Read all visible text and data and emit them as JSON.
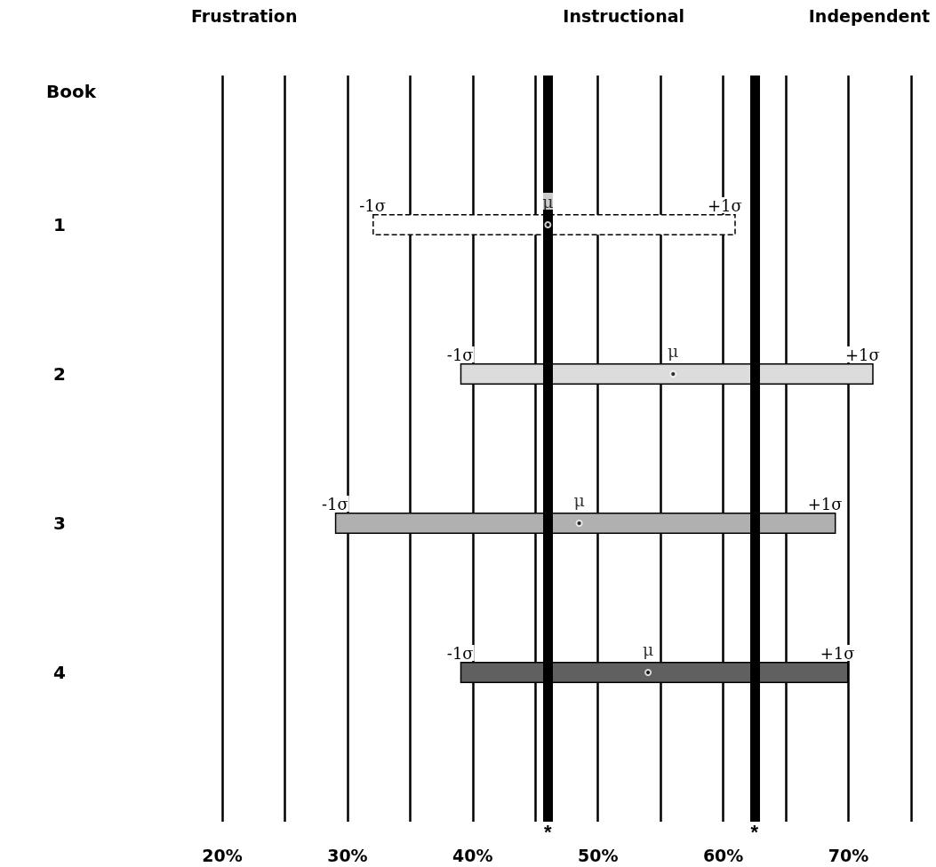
{
  "chart_data": {
    "type": "bar",
    "orientation": "horizontal",
    "ylabel": "Book",
    "categories": [
      "1",
      "2",
      "3",
      "4"
    ],
    "base": [
      32,
      39,
      29,
      39
    ],
    "values": [
      29,
      33,
      40,
      31
    ],
    "colors": [
      "#ffffff",
      "#dcdcdc",
      "#b0b0b0",
      "#606060"
    ],
    "series": [
      {
        "type": "scatter",
        "values": [
          46,
          56,
          48.5,
          54
        ],
        "marker": "circle",
        "color": "#000000",
        "value_labels": [
          "μ",
          "μ",
          "μ",
          "μ"
        ]
      }
    ],
    "xlim": [
      20,
      75
    ],
    "xticks": [
      {
        "value": 20,
        "label": "20%"
      },
      {
        "value": 25,
        "label": null
      },
      {
        "value": 30,
        "label": "30%"
      },
      {
        "value": 35,
        "label": null
      },
      {
        "value": 40,
        "label": "40%"
      },
      {
        "value": 45,
        "label": null
      },
      {
        "value": 50,
        "label": "50%"
      },
      {
        "value": 55,
        "label": null
      },
      {
        "value": 60,
        "label": "60%"
      },
      {
        "value": 65,
        "label": null
      },
      {
        "value": 70,
        "label": "70%"
      },
      {
        "value": 75,
        "label": null
      }
    ],
    "grid": "x",
    "ref_lines": [
      {
        "axis": "x",
        "value": 46,
        "label": "*",
        "color": "#000000"
      },
      {
        "axis": "x",
        "value": 62.5,
        "label": "*",
        "color": "#000000"
      }
    ],
    "annotations": [
      "Frustration",
      "Instructional",
      "Independent",
      {
        "text": "-1σ",
        "x": 32,
        "y": "1"
      },
      {
        "text": "+1σ",
        "x": 61,
        "y": "1"
      },
      {
        "text": "-1σ",
        "x": 39,
        "y": "2"
      },
      {
        "text": "+1σ",
        "x": 72,
        "y": "2"
      },
      {
        "text": "-1σ",
        "x": 29,
        "y": "3"
      },
      {
        "text": "+1σ",
        "x": 69,
        "y": "3"
      },
      {
        "text": "-1σ",
        "x": 39,
        "y": "4"
      },
      {
        "text": "+1σ",
        "x": 70,
        "y": "4"
      }
    ]
  }
}
